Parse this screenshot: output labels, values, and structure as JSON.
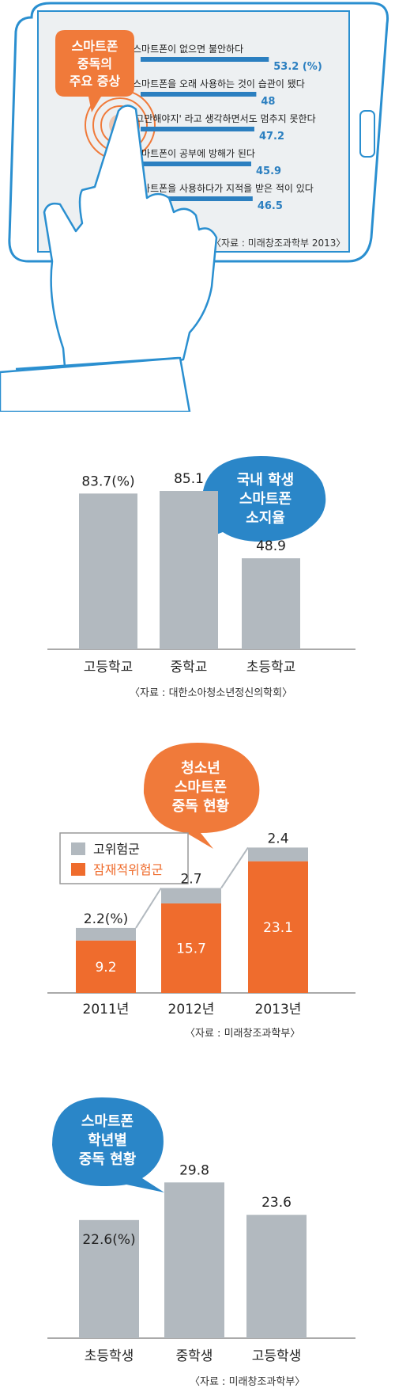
{
  "colors": {
    "accent_blue": "#2b7fc0",
    "accent_orange": "#ef6c2d",
    "bar_gray": "#b2b9bf",
    "phone_outline": "#2a8fd0",
    "bubble_orange": "#f07a3a",
    "bubble_blue": "#2a86c8"
  },
  "chart_data": [
    {
      "type": "bar",
      "orientation": "horizontal",
      "title": "스마트폰 중독의 주요 증상",
      "categories": [
        "스마트폰이 없으면 불안하다",
        "스마트폰을 오래 사용하는 것이 습관이 됐다",
        "'그만해야지' 라고 생각하면서도 멈추지 못한다",
        "스마트폰이 공부에 방해가 된다",
        "스마트폰을 사용하다가 지적을 받은 적이 있다"
      ],
      "values": [
        53.2,
        48,
        47.2,
        45.9,
        46.5
      ],
      "value_labels": [
        "53.2 (%)",
        "48",
        "47.2",
        "45.9",
        "46.5"
      ],
      "source": "〈자료 : 미래창조과학부 2013〉"
    },
    {
      "type": "bar",
      "title": "국내 학생 스마트폰 소지율",
      "categories": [
        "고등학교",
        "중학교",
        "초등학교"
      ],
      "values": [
        83.7,
        85.1,
        48.9
      ],
      "value_labels": [
        "83.7(%)",
        "85.1",
        "48.9"
      ],
      "ylim": [
        0,
        100
      ],
      "source": "〈자료 : 대한소아청소년정신의학회〉"
    },
    {
      "type": "bar",
      "stacked": true,
      "title": "청소년 스마트폰 중독 현황",
      "categories": [
        "2011년",
        "2012년",
        "2013년"
      ],
      "series": [
        {
          "name": "잠재적위험군",
          "values": [
            9.2,
            15.7,
            23.1
          ],
          "value_labels": [
            "9.2",
            "15.7",
            "23.1"
          ]
        },
        {
          "name": "고위험군",
          "values": [
            2.2,
            2.7,
            2.4
          ],
          "value_labels": [
            "2.2(%)",
            "2.7",
            "2.4"
          ]
        }
      ],
      "legend": [
        "고위험군",
        "잠재적위험군"
      ],
      "ylim": [
        0,
        27
      ],
      "source": "〈자료 : 미래창조과학부〉"
    },
    {
      "type": "bar",
      "title": "스마트폰 학년별 중독 현황",
      "categories": [
        "초등학생",
        "중학생",
        "고등학생"
      ],
      "values": [
        22.6,
        29.8,
        23.6
      ],
      "value_labels": [
        "22.6(%)",
        "29.8",
        "23.6"
      ],
      "ylim": [
        0,
        31
      ],
      "source": "〈자료 : 미래창조과학부〉"
    }
  ],
  "bubbles": {
    "c1": [
      "스마트폰",
      "중독의",
      "주요 증상"
    ],
    "c2": [
      "국내 학생",
      "스마트폰",
      "소지율"
    ],
    "c3": [
      "청소년",
      "스마트폰",
      "중독 현황"
    ],
    "c4": [
      "스마트폰",
      "학년별",
      "중독 현황"
    ]
  }
}
